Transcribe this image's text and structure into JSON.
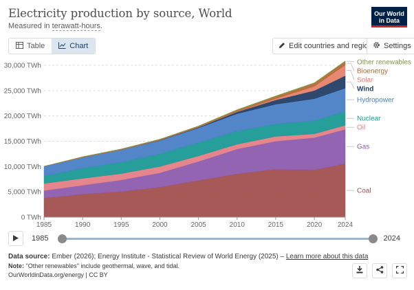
{
  "header": {
    "title": "Electricity production by source, World",
    "subtitle_prefix": "Measured in ",
    "subtitle_unit": "terawatt-hours",
    "subtitle_suffix": ".",
    "logo_line1": "Our World",
    "logo_line2": "in Data"
  },
  "tabs": [
    {
      "label": "Table",
      "icon": "table-icon"
    },
    {
      "label": "Chart",
      "icon": "chart-icon"
    }
  ],
  "toolbar": {
    "edit_label": "Edit countries and regions",
    "settings_label": "Settings"
  },
  "timeline": {
    "start_year": "1985",
    "end_year": "2024",
    "handle_start_fraction": 0,
    "handle_end_fraction": 1
  },
  "footer": {
    "source_label": "Data source:",
    "source_text": " Ember (2026); Energy Institute - Statistical Review of World Energy (2025) – ",
    "source_link": "Learn more about this data",
    "note_label": "Note:",
    "note_text": " \"Other renewables\" include geothermal, wave, and tidal.",
    "credit": "OurWorldinData.org/energy | CC BY"
  },
  "colors": {
    "Coal": "#a2504f",
    "Gas": "#8d5cad",
    "Oil": "#e37f86",
    "Nuclear": "#1a9a95",
    "Hydropower": "#4980c6",
    "Wind": "#233e66",
    "Solar": "#e6826a",
    "Bioenergy": "#b36b35",
    "Other renewables": "#7d9a4a"
  },
  "chart_data": {
    "type": "area",
    "stacked": true,
    "title": "Electricity production by source, World",
    "ylabel": "TWh",
    "ylim": [
      0,
      30000
    ],
    "yticks": [
      0,
      5000,
      10000,
      15000,
      20000,
      25000,
      30000
    ],
    "ytick_labels": [
      "0 TWh",
      "5,000 TWh",
      "10,000 TWh",
      "15,000 TWh",
      "20,000 TWh",
      "25,000 TWh",
      "30,000 TWh"
    ],
    "xlim": [
      1985,
      2024
    ],
    "xticks": [
      1985,
      1990,
      1995,
      2000,
      2005,
      2010,
      2015,
      2020,
      2024
    ],
    "x": [
      1985,
      1990,
      1995,
      2000,
      2005,
      2010,
      2015,
      2020,
      2024
    ],
    "series": [
      {
        "name": "Coal",
        "values": [
          3750,
          4550,
          5050,
          5950,
          7250,
          8550,
          9450,
          9350,
          10550
        ]
      },
      {
        "name": "Gas",
        "values": [
          1500,
          1750,
          2300,
          2800,
          3750,
          4900,
          5550,
          6350,
          6800
        ]
      },
      {
        "name": "Oil",
        "values": [
          1400,
          1350,
          1250,
          1250,
          1100,
          950,
          950,
          750,
          800
        ]
      },
      {
        "name": "Nuclear",
        "values": [
          1450,
          2000,
          2250,
          2500,
          2600,
          2600,
          2450,
          2600,
          2750
        ]
      },
      {
        "name": "Hydropower",
        "values": [
          1950,
          2150,
          2450,
          2650,
          2950,
          3450,
          3900,
          4350,
          4600
        ]
      },
      {
        "name": "Wind",
        "values": [
          0,
          0,
          0,
          50,
          100,
          350,
          850,
          1600,
          2450
        ]
      },
      {
        "name": "Solar",
        "values": [
          0,
          0,
          0,
          0,
          0,
          50,
          250,
          850,
          2100
        ]
      },
      {
        "name": "Bioenergy",
        "values": [
          0,
          100,
          130,
          150,
          200,
          300,
          450,
          600,
          700
        ]
      },
      {
        "name": "Other renewables",
        "values": [
          0,
          40,
          50,
          60,
          70,
          80,
          90,
          100,
          100
        ]
      }
    ],
    "legend_position": "right"
  }
}
